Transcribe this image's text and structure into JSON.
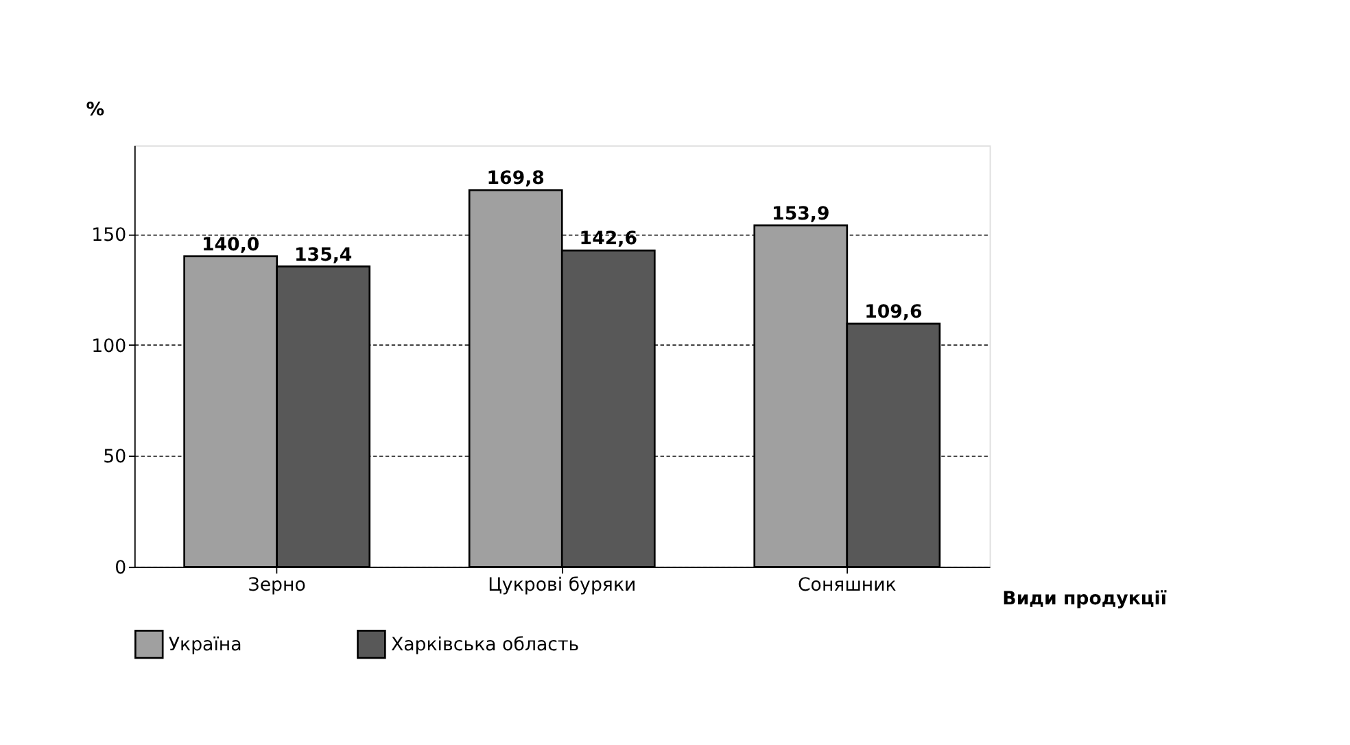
{
  "chart_data": {
    "type": "bar",
    "categories": [
      "Зерно",
      "Цукрові буряки",
      "Соняшник"
    ],
    "series": [
      {
        "name": "Україна",
        "color": "#a0a0a0",
        "values": [
          140.0,
          169.8,
          153.9
        ],
        "value_labels": [
          "140,0",
          "169,8",
          "153,9"
        ]
      },
      {
        "name": "Харківська область",
        "color": "#585858",
        "values": [
          135.4,
          142.6,
          109.6
        ],
        "value_labels": [
          "135,4",
          "142,6",
          "109,6"
        ]
      }
    ],
    "ylabel": "%",
    "xlabel": "Види продукції",
    "ylim": [
      0,
      190
    ],
    "yticks": [
      0,
      50,
      100,
      150
    ],
    "grid": "y",
    "legend": "bottom"
  }
}
